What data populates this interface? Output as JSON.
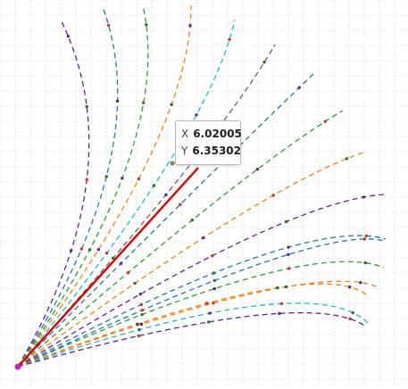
{
  "canvas": {
    "background": "#ffffff",
    "grid_color": "#c8c8c8",
    "grid": true
  },
  "chart_data": {
    "type": "line",
    "title": "",
    "xlabel": "",
    "ylabel": "",
    "grid": true,
    "origin": [
      0,
      0
    ],
    "marker_colors": [
      "#5a2a8a",
      "#c0392b",
      "#2a6f2a"
    ],
    "series": [
      {
        "color": "#6a1b9a",
        "start_angle_deg": 45,
        "bend": -7
      },
      {
        "color": "#1f77b4",
        "start_angle_deg": 45,
        "bend": -6
      },
      {
        "color": "#2ca02c",
        "start_angle_deg": 45,
        "bend": -5
      },
      {
        "color": "#ff7f0e",
        "start_angle_deg": 45,
        "bend": -4
      },
      {
        "color": "#17becf",
        "start_angle_deg": 45,
        "bend": -3
      },
      {
        "color": "#8c564b",
        "start_angle_deg": 45,
        "bend": -2
      },
      {
        "color": "#1f77b4",
        "start_angle_deg": 45,
        "bend": -1
      },
      {
        "color": "#2ca02c",
        "start_angle_deg": 45,
        "bend": 0
      },
      {
        "color": "#ff7f0e",
        "start_angle_deg": 45,
        "bend": 1
      },
      {
        "color": "#6a1b9a",
        "start_angle_deg": 45,
        "bend": 2
      },
      {
        "color": "#1f77b4",
        "start_angle_deg": 45,
        "bend": 3
      },
      {
        "color": "#2ca02c",
        "start_angle_deg": 45,
        "bend": 4
      },
      {
        "color": "#ff7f0e",
        "start_angle_deg": 45,
        "bend": 5
      },
      {
        "color": "#1f77b4",
        "start_angle_deg": 45,
        "bend": 6
      },
      {
        "color": "#17becf",
        "start_angle_deg": 45,
        "bend": 7
      },
      {
        "color": "#ff7f0e",
        "start_angle_deg": 45,
        "bend": 8
      },
      {
        "color": "#6a1b9a",
        "start_angle_deg": 45,
        "bend": 9
      }
    ],
    "highlight_vector": {
      "color": "#e00000",
      "x": 6.02005,
      "y": 6.35302
    },
    "origin_marker_color": "#cc22cc",
    "hover_point_color": "#888866"
  },
  "tooltip": {
    "x_label": "X",
    "x_value": "6.02005",
    "y_label": "Y",
    "y_value": "6.35302"
  }
}
